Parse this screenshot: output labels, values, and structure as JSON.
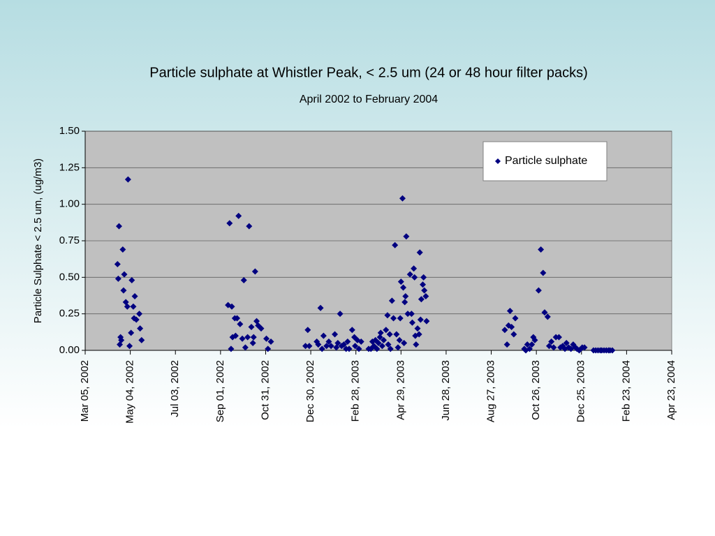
{
  "chart_data": {
    "type": "scatter",
    "title": "Particle sulphate at Whistler Peak, < 2.5 um (24 or 48 hour filter packs)",
    "subtitle": "April 2002 to February 2004",
    "y_label": "Particle Sulphate < 2.5 um, (ug/m3)",
    "xlim": [
      "2002-03-05",
      "2004-04-23"
    ],
    "xticks": [
      {
        "value": "2002-03-05",
        "label": "Mar 05, 2002"
      },
      {
        "value": "2002-05-04",
        "label": "May 04, 2002"
      },
      {
        "value": "2002-07-03",
        "label": "Jul 03, 2002"
      },
      {
        "value": "2002-09-01",
        "label": "Sep 01, 2002"
      },
      {
        "value": "2002-10-31",
        "label": "Oct 31, 2002"
      },
      {
        "value": "2002-12-30",
        "label": "Dec 30, 2002"
      },
      {
        "value": "2003-02-28",
        "label": "Feb 28, 2003"
      },
      {
        "value": "2003-04-29",
        "label": "Apr 29, 2003"
      },
      {
        "value": "2003-06-28",
        "label": "Jun 28, 2003"
      },
      {
        "value": "2003-08-27",
        "label": "Aug 27, 2003"
      },
      {
        "value": "2003-10-26",
        "label": "Oct 26, 2003"
      },
      {
        "value": "2003-12-25",
        "label": "Dec 25, 2003"
      },
      {
        "value": "2004-02-23",
        "label": "Feb 23, 2004"
      },
      {
        "value": "2004-04-23",
        "label": "Apr 23, 2004"
      }
    ],
    "ylim": [
      0,
      1.5
    ],
    "yticks": [
      {
        "value": 0,
        "label": "0.00"
      },
      {
        "value": 0.25,
        "label": "0.25"
      },
      {
        "value": 0.5,
        "label": "0.50"
      },
      {
        "value": 0.75,
        "label": "0.75"
      },
      {
        "value": 1,
        "label": "1.00"
      },
      {
        "value": 1.25,
        "label": "1.25"
      },
      {
        "value": 1.5,
        "label": "1.50"
      }
    ],
    "grid": true,
    "legend": "upper right",
    "series": [
      {
        "name": "Particle sulphate",
        "color": "#000080",
        "x": [
          "2002-04-19",
          "2002-04-17",
          "2002-04-18",
          "2002-04-21",
          "2002-04-22",
          "2002-04-20",
          "2002-04-24",
          "2002-04-26",
          "2002-04-25",
          "2002-04-28",
          "2002-04-30",
          "2002-05-01",
          "2002-05-03",
          "2002-05-05",
          "2002-05-06",
          "2002-05-08",
          "2002-05-10",
          "2002-05-09",
          "2002-05-12",
          "2002-05-16",
          "2002-05-17",
          "2002-05-19",
          "2002-09-13",
          "2002-09-11",
          "2002-09-16",
          "2002-09-15",
          "2002-09-17",
          "2002-09-20",
          "2002-09-23",
          "2002-09-21",
          "2002-09-25",
          "2002-09-27",
          "2002-09-30",
          "2002-10-02",
          "2002-10-04",
          "2002-10-07",
          "2002-10-09",
          "2002-10-12",
          "2002-10-14",
          "2002-10-15",
          "2002-10-17",
          "2002-10-19",
          "2002-10-21",
          "2002-10-25",
          "2002-11-01",
          "2002-11-03",
          "2002-11-07",
          "2002-12-23",
          "2002-12-26",
          "2002-12-28",
          "2003-01-07",
          "2003-01-09",
          "2003-01-12",
          "2003-01-14",
          "2003-01-16",
          "2003-01-20",
          "2003-01-23",
          "2003-01-26",
          "2003-01-31",
          "2003-02-02",
          "2003-02-04",
          "2003-02-07",
          "2003-02-09",
          "2003-02-12",
          "2003-02-15",
          "2003-02-17",
          "2003-02-19",
          "2003-02-23",
          "2003-02-26",
          "2003-02-27",
          "2003-03-02",
          "2003-03-04",
          "2003-03-07",
          "2003-03-17",
          "2003-03-20",
          "2003-03-22",
          "2003-03-24",
          "2003-03-26",
          "2003-03-28",
          "2003-03-30",
          "2003-04-01",
          "2003-04-02",
          "2003-04-04",
          "2003-04-06",
          "2003-04-09",
          "2003-04-11",
          "2003-04-12",
          "2003-04-14",
          "2003-04-15",
          "2003-04-17",
          "2003-04-19",
          "2003-04-21",
          "2003-04-23",
          "2003-04-25",
          "2003-04-27",
          "2003-04-28",
          "2003-04-29",
          "2003-05-01",
          "2003-05-02",
          "2003-05-03",
          "2003-05-04",
          "2003-05-05",
          "2003-05-06",
          "2003-05-08",
          "2003-05-11",
          "2003-05-13",
          "2003-05-14",
          "2003-05-16",
          "2003-05-17",
          "2003-05-18",
          "2003-05-19",
          "2003-05-21",
          "2003-05-23",
          "2003-05-24",
          "2003-05-25",
          "2003-05-26",
          "2003-05-28",
          "2003-05-29",
          "2003-05-30",
          "2003-06-01",
          "2003-06-02",
          "2003-09-14",
          "2003-09-17",
          "2003-09-19",
          "2003-09-21",
          "2003-09-23",
          "2003-09-26",
          "2003-09-28",
          "2003-10-10",
          "2003-10-12",
          "2003-10-14",
          "2003-10-17",
          "2003-10-20",
          "2003-10-22",
          "2003-10-24",
          "2003-10-29",
          "2003-11-01",
          "2003-11-04",
          "2003-11-06",
          "2003-11-10",
          "2003-11-12",
          "2003-11-15",
          "2003-11-18",
          "2003-11-21",
          "2003-11-25",
          "2003-11-27",
          "2003-11-30",
          "2003-12-03",
          "2003-12-05",
          "2003-12-08",
          "2003-12-11",
          "2003-12-14",
          "2003-12-17",
          "2003-12-19",
          "2003-12-22",
          "2003-12-26",
          "2003-12-29",
          "2004-01-10",
          "2004-01-13",
          "2004-01-16",
          "2004-01-19",
          "2004-01-21",
          "2004-01-24",
          "2004-01-27",
          "2004-01-30",
          "2004-02-01",
          "2004-02-04"
        ],
        "values": [
          0.85,
          0.59,
          0.49,
          0.09,
          0.07,
          0.04,
          0.69,
          0.52,
          0.41,
          0.33,
          0.3,
          1.17,
          0.03,
          0.12,
          0.48,
          0.3,
          0.37,
          0.22,
          0.21,
          0.25,
          0.15,
          0.07,
          0.87,
          0.31,
          0.3,
          0.01,
          0.09,
          0.22,
          0.22,
          0.1,
          0.92,
          0.18,
          0.08,
          0.48,
          0.02,
          0.09,
          0.85,
          0.16,
          0.05,
          0.09,
          0.54,
          0.2,
          0.17,
          0.15,
          0.08,
          0.01,
          0.06,
          0.03,
          0.14,
          0.03,
          0.06,
          0.04,
          0.29,
          0.01,
          0.1,
          0.03,
          0.06,
          0.03,
          0.11,
          0.02,
          0.05,
          0.25,
          0.03,
          0.04,
          0.01,
          0.06,
          0.01,
          0.14,
          0.09,
          0.03,
          0.07,
          0.01,
          0.06,
          0.01,
          0.01,
          0.06,
          0.03,
          0.07,
          0.01,
          0.05,
          0.09,
          0.12,
          0.03,
          0.07,
          0.14,
          0.24,
          0.04,
          0.11,
          0.01,
          0.34,
          0.22,
          0.72,
          0.11,
          0.02,
          0.07,
          0.22,
          0.47,
          1.04,
          0.43,
          0.05,
          0.33,
          0.37,
          0.78,
          0.25,
          0.52,
          0.25,
          0.19,
          0.56,
          0.5,
          0.1,
          0.04,
          0.15,
          0.11,
          0.67,
          0.21,
          0.35,
          0.45,
          0.5,
          0.41,
          0.37,
          0.2,
          0.14,
          0.04,
          0.17,
          0.27,
          0.16,
          0.11,
          0.22,
          0.01,
          0.0,
          0.04,
          0.01,
          0.04,
          0.09,
          0.07,
          0.41,
          0.69,
          0.53,
          0.26,
          0.23,
          0.03,
          0.06,
          0.02,
          0.09,
          0.09,
          0.02,
          0.03,
          0.01,
          0.05,
          0.02,
          0.01,
          0.04,
          0.02,
          0.01,
          0.0,
          0.02,
          0.02,
          0.0,
          0.0,
          0.0,
          0.0,
          0.0,
          0.0,
          0.0,
          0.0,
          0.0,
          0.0
        ]
      }
    ]
  }
}
